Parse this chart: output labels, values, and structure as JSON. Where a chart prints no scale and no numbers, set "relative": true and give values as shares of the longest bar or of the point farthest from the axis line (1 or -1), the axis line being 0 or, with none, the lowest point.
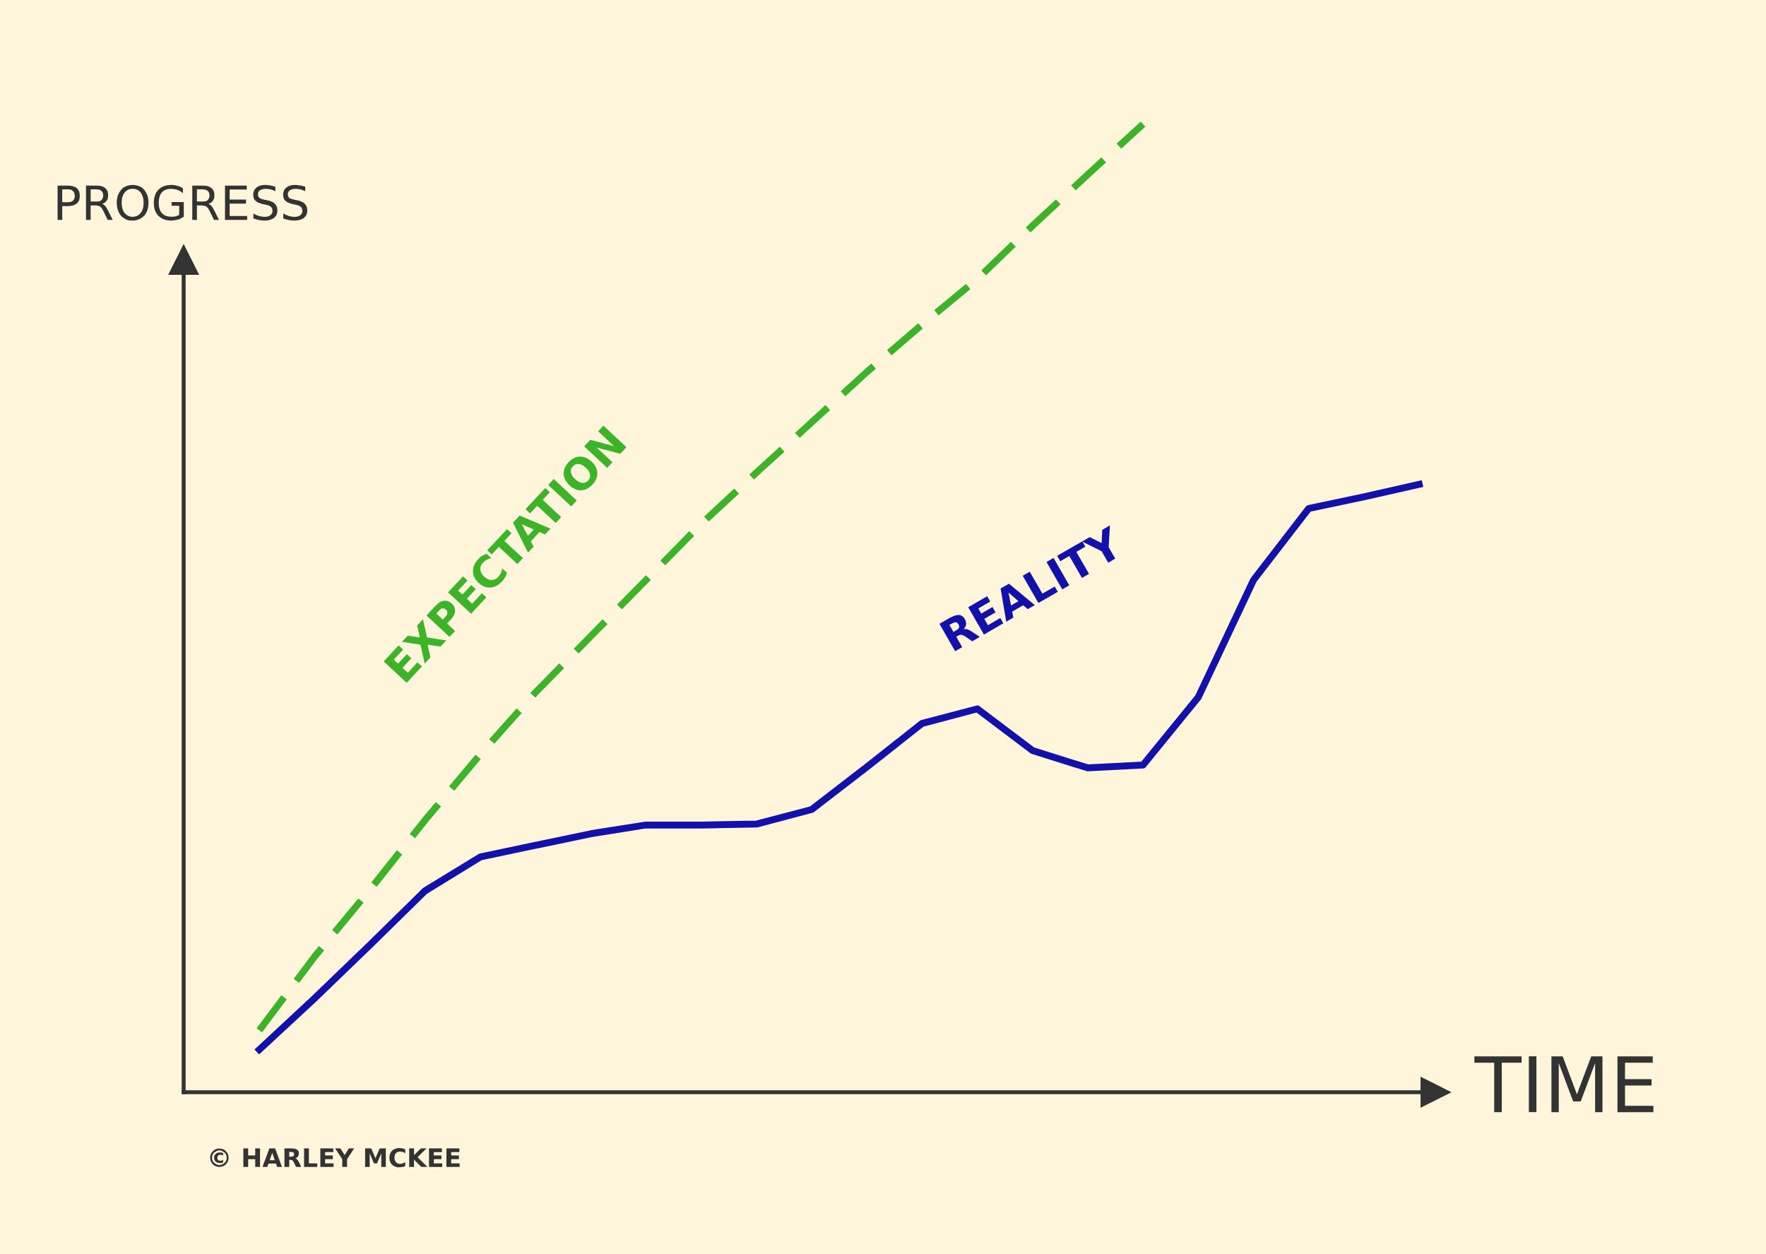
{
  "chart_data": {
    "type": "line",
    "relative": true,
    "xlabel": "TIME",
    "ylabel": "PROGRESS",
    "categories": [
      null,
      null,
      null,
      null,
      null,
      null,
      null,
      null,
      null,
      null,
      null,
      null,
      null,
      null,
      null,
      null,
      null,
      null,
      null,
      null,
      null,
      null
    ],
    "series": [
      {
        "name": "EXPECTATION",
        "color": "#3db32a",
        "line_style": "dashed",
        "values": [
          0.064,
          0.14,
          0.209,
          0.281,
          0.349,
          0.413,
          0.471,
          0.529,
          0.587,
          0.64,
          0.692,
          0.744,
          0.793,
          0.84,
          0.895,
          0.948,
          1.0,
          null,
          null,
          null,
          null,
          null
        ]
      },
      {
        "name": "REALITY",
        "color": "#1212aa",
        "line_style": "solid",
        "values": [
          0.044,
          0.097,
          0.152,
          0.208,
          0.243,
          0.255,
          0.267,
          0.276,
          0.276,
          0.277,
          0.292,
          0.336,
          0.381,
          0.396,
          0.353,
          0.335,
          0.338,
          0.408,
          0.529,
          0.603,
          0.615,
          0.628
        ]
      }
    ],
    "legend": false,
    "marker": "none",
    "annotations": [
      "© HARLEY MCKEE"
    ]
  }
}
